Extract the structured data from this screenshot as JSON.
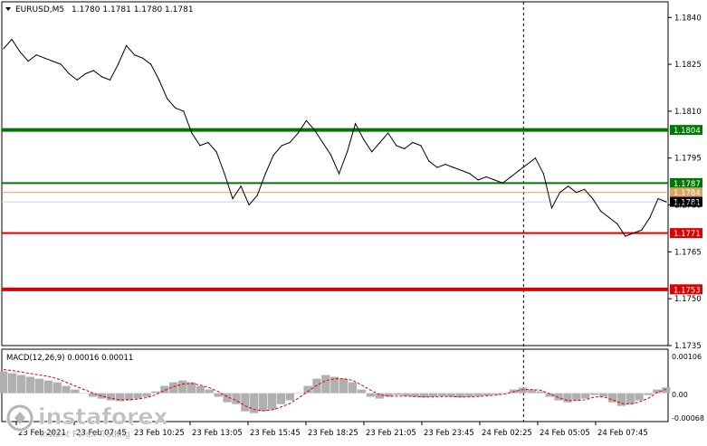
{
  "header": {
    "symbol": "EURUSD,M5",
    "ohlc": "1.1780 1.1781 1.1780 1.1781"
  },
  "macd": {
    "label": "MACD(12,26,9) 0.00016 0.00011",
    "tick_labels": [
      "0.00106",
      "0.00",
      "-0.00068"
    ]
  },
  "watermark": {
    "brand": "instaforex",
    "tagline": "Instant Forex Trading"
  },
  "colors": {
    "price_line": "#000000",
    "resistance": "#007700",
    "support": "#dd0000",
    "current_price_line": "#d0d0d0",
    "orange_line": "#e0a060",
    "macd_hist": "#b0b0b0",
    "macd_signal": "#dd0000"
  },
  "chart_data": [
    {
      "type": "line",
      "title": "EURUSD,M5",
      "ylim": [
        1.1735,
        1.1845
      ],
      "y_ticks": [
        1.184,
        1.1825,
        1.181,
        1.1795,
        1.178,
        1.1765,
        1.175,
        1.1735
      ],
      "x_tick_labels": [
        "23 Feb 2021",
        "23 Feb 07:45",
        "23 Feb 10:25",
        "23 Feb 13:05",
        "23 Feb 15:45",
        "23 Feb 18:25",
        "23 Feb 21:05",
        "23 Feb 23:45",
        "24 Feb 02:25",
        "24 Feb 05:05",
        "24 Feb 07:45"
      ],
      "series": [
        {
          "values": [
            1.183,
            1.1833,
            1.1829,
            1.1826,
            1.1828,
            1.1827,
            1.1826,
            1.1825,
            1.1822,
            1.182,
            1.1822,
            1.1823,
            1.1821,
            1.182,
            1.1825,
            1.1831,
            1.1828,
            1.1827,
            1.1825,
            1.182,
            1.1814,
            1.1811,
            1.181,
            1.1803,
            1.1799,
            1.18,
            1.1797,
            1.179,
            1.1782,
            1.1786,
            1.178,
            1.1783,
            1.179,
            1.1796,
            1.1799,
            1.18,
            1.1803,
            1.1807,
            1.1804,
            1.18,
            1.1796,
            1.179,
            1.1797,
            1.1806,
            1.1801,
            1.1797,
            1.18,
            1.1803,
            1.1799,
            1.1798,
            1.18,
            1.1799,
            1.1794,
            1.1792,
            1.1793,
            1.1792,
            1.1791,
            1.179,
            1.1788,
            1.1789,
            1.1788,
            1.1787,
            1.1789,
            1.1791,
            1.1793,
            1.1795,
            1.179,
            1.1779,
            1.1784,
            1.1786,
            1.1784,
            1.1785,
            1.1782,
            1.1778,
            1.1776,
            1.1774,
            1.177,
            1.1771,
            1.1772,
            1.1776,
            1.1782,
            1.1781
          ]
        }
      ],
      "horizontal_levels": [
        {
          "label": "1.1804",
          "value": 1.1804,
          "role": "resistance"
        },
        {
          "label": "1.1787",
          "value": 1.1787,
          "role": "resistance"
        },
        {
          "label": "1.1784",
          "value": 1.1784,
          "role": "orange"
        },
        {
          "label": "1.1781",
          "value": 1.1781,
          "role": "current"
        },
        {
          "label": "1.1771",
          "value": 1.1771,
          "role": "support"
        },
        {
          "label": "1.1753",
          "value": 1.1753,
          "role": "support"
        }
      ],
      "vertical_marker_index": 64
    },
    {
      "type": "bar",
      "title": "MACD(12,26,9) 0.00016 0.00011",
      "ylim": [
        -0.00068,
        0.00106
      ],
      "series": [
        {
          "kind": "histogram",
          "values": [
            0.0006,
            0.00055,
            0.0005,
            0.00045,
            0.0004,
            0.00035,
            0.0003,
            0.0002,
            0.0001,
            0.0,
            -0.0001,
            -0.00015,
            -0.0002,
            -0.00022,
            -0.0002,
            -0.00015,
            -0.0001,
            5e-05,
            0.0002,
            0.0003,
            0.00035,
            0.0003,
            0.0002,
            0.0001,
            -0.0001,
            -0.00025,
            -0.0003,
            -0.0005,
            -0.00055,
            -0.0005,
            -0.00045,
            -0.0003,
            -0.0002,
            0.0,
            0.0002,
            0.0004,
            0.0005,
            0.00045,
            0.0004,
            0.0003,
            0.0001,
            -0.0001,
            -0.00015,
            -0.0001,
            -5e-05,
            -8e-05,
            -0.0001,
            -0.00012,
            -0.0001,
            -8e-05,
            -0.0001,
            -0.00012,
            -0.0001,
            -8e-05,
            -6e-05,
            -4e-05,
            0.0,
            0.0001,
            0.00015,
            0.0001,
            5e-05,
            -0.0001,
            -0.0002,
            -0.00025,
            -0.0002,
            -0.00015,
            -5e-05,
            -0.0001,
            -0.00025,
            -0.00035,
            -0.0003,
            -0.0002,
            -5e-05,
            0.0001,
            0.00016
          ]
        },
        {
          "kind": "signal",
          "values": [
            0.00065,
            0.00062,
            0.00058,
            0.00054,
            0.0005,
            0.00046,
            0.0004,
            0.0003,
            0.0002,
            0.0001,
            0.0,
            -8e-05,
            -0.00014,
            -0.00018,
            -0.00018,
            -0.00016,
            -0.00012,
            -4e-05,
            8e-05,
            0.00018,
            0.00025,
            0.00027,
            0.00022,
            0.00015,
            4e-05,
            -0.0001,
            -0.0002,
            -0.00035,
            -0.00045,
            -0.00048,
            -0.00046,
            -0.00038,
            -0.00028,
            -0.00012,
            5e-05,
            0.00022,
            0.00035,
            0.0004,
            0.0004,
            0.00035,
            0.00022,
            8e-05,
            -4e-05,
            -8e-05,
            -8e-05,
            -8e-05,
            -9e-05,
            -0.0001,
            -0.0001,
            -9e-05,
            -9e-05,
            -0.0001,
            -0.0001,
            -9e-05,
            -7e-05,
            -5e-05,
            -2e-05,
            4e-05,
            0.0001,
            0.0001,
            8e-05,
            -2e-05,
            -0.00012,
            -0.0002,
            -0.0002,
            -0.00018,
            -0.0001,
            -0.0001,
            -0.00018,
            -0.00028,
            -0.0003,
            -0.00024,
            -0.00014,
            2e-05,
            0.00011
          ]
        }
      ]
    }
  ]
}
